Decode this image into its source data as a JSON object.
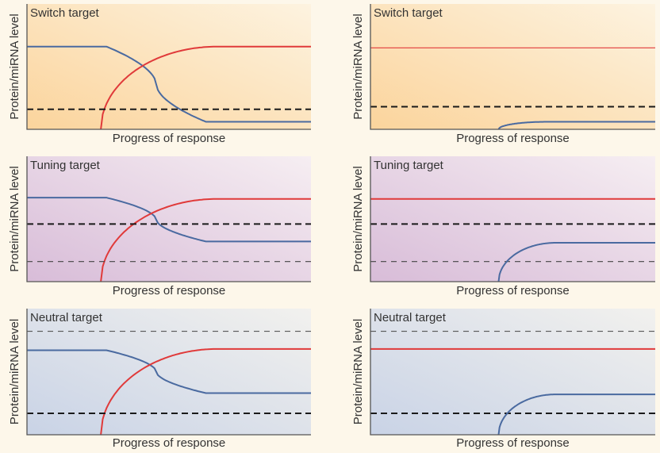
{
  "colors": {
    "red": "#e03a3a",
    "blue": "#4a6aa0",
    "dashed": "#1a1a1a",
    "axis": "#555555",
    "switch_bg": [
      "#fbd49c",
      "#fdf3e0"
    ],
    "tuning_bg": [
      "#d8bcd8",
      "#f6eef2"
    ],
    "neutral_bg": [
      "#c9d3e6",
      "#f2f1ee"
    ]
  },
  "axis_labels": {
    "x": "Progress of response",
    "y": "Protein/miRNA level"
  },
  "chart_data": [
    {
      "type": "line",
      "title": "Switch target",
      "bg": "switch_bg",
      "xlim": [
        0,
        100
      ],
      "ylim": [
        0,
        100
      ],
      "series": [
        {
          "color": "blue",
          "shape": "fall",
          "x_start": 28,
          "x_end": 63,
          "y_start": 66,
          "y_end": 6
        },
        {
          "color": "red",
          "shape": "rise",
          "x_start": 26,
          "x_end": 67,
          "y_start": 0,
          "y_end": 66
        },
        {
          "color": "dashed",
          "shape": "flat",
          "y": 16,
          "style": "thick-dash"
        }
      ]
    },
    {
      "type": "line",
      "title": "Switch target",
      "bg": "switch_bg",
      "xlim": [
        0,
        100
      ],
      "ylim": [
        0,
        100
      ],
      "series": [
        {
          "color": "red",
          "shape": "flat",
          "y": 65,
          "style": "thin"
        },
        {
          "color": "dashed",
          "shape": "flat",
          "y": 18,
          "style": "thick-dash"
        },
        {
          "color": "blue",
          "shape": "rise",
          "x_start": 45,
          "x_end": 62,
          "y_start": 0,
          "y_end": 6
        }
      ]
    },
    {
      "type": "line",
      "title": "Tuning target",
      "bg": "tuning_bg",
      "xlim": [
        0,
        100
      ],
      "ylim": [
        0,
        100
      ],
      "series": [
        {
          "color": "blue",
          "shape": "fall",
          "x_start": 28,
          "x_end": 63,
          "y_start": 67,
          "y_end": 32
        },
        {
          "color": "red",
          "shape": "rise",
          "x_start": 26,
          "x_end": 67,
          "y_start": 0,
          "y_end": 66
        },
        {
          "color": "dashed",
          "shape": "flat",
          "y": 46,
          "style": "thick-dash"
        },
        {
          "color": "dashed",
          "shape": "flat",
          "y": 16,
          "style": "thin-dash"
        }
      ]
    },
    {
      "type": "line",
      "title": "Tuning target",
      "bg": "tuning_bg",
      "xlim": [
        0,
        100
      ],
      "ylim": [
        0,
        100
      ],
      "series": [
        {
          "color": "red",
          "shape": "flat",
          "y": 66,
          "style": "thick"
        },
        {
          "color": "dashed",
          "shape": "flat",
          "y": 46,
          "style": "thick-dash"
        },
        {
          "color": "dashed",
          "shape": "flat",
          "y": 16,
          "style": "thin-dash"
        },
        {
          "color": "blue",
          "shape": "rise",
          "x_start": 45,
          "x_end": 65,
          "y_start": 0,
          "y_end": 31
        }
      ]
    },
    {
      "type": "line",
      "title": "Neutral target",
      "bg": "neutral_bg",
      "xlim": [
        0,
        100
      ],
      "ylim": [
        0,
        100
      ],
      "series": [
        {
          "color": "dashed",
          "shape": "flat",
          "y": 82,
          "style": "thin-dash"
        },
        {
          "color": "blue",
          "shape": "fall",
          "x_start": 28,
          "x_end": 63,
          "y_start": 67,
          "y_end": 33
        },
        {
          "color": "red",
          "shape": "rise",
          "x_start": 26,
          "x_end": 67,
          "y_start": 0,
          "y_end": 68
        },
        {
          "color": "dashed",
          "shape": "flat",
          "y": 17,
          "style": "thick-dash"
        }
      ]
    },
    {
      "type": "line",
      "title": "Neutral target",
      "bg": "neutral_bg",
      "xlim": [
        0,
        100
      ],
      "ylim": [
        0,
        100
      ],
      "series": [
        {
          "color": "dashed",
          "shape": "flat",
          "y": 82,
          "style": "thin-dash"
        },
        {
          "color": "red",
          "shape": "flat",
          "y": 68,
          "style": "thick"
        },
        {
          "color": "dashed",
          "shape": "flat",
          "y": 17,
          "style": "thick-dash"
        },
        {
          "color": "blue",
          "shape": "rise",
          "x_start": 45,
          "x_end": 65,
          "y_start": 0,
          "y_end": 32
        }
      ]
    }
  ]
}
